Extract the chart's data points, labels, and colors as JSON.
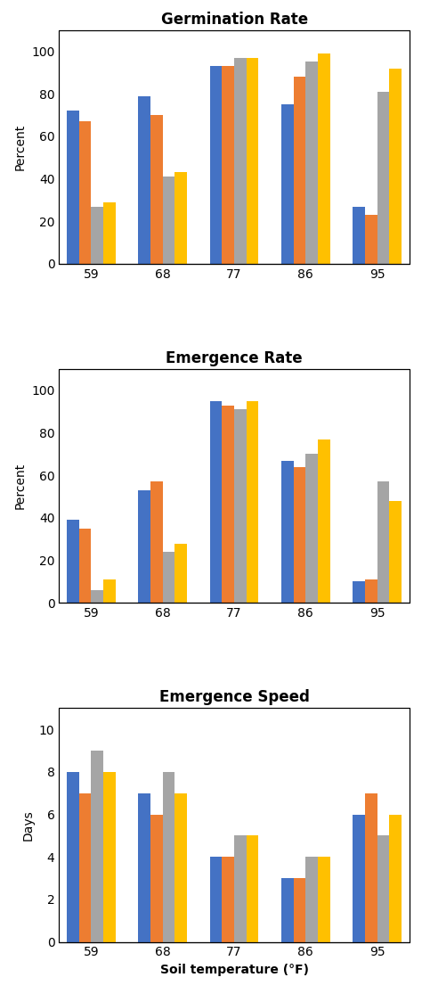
{
  "temperatures": [
    "59",
    "68",
    "77",
    "86",
    "95"
  ],
  "bar_colors": [
    "#4472C4",
    "#ED7D31",
    "#A5A5A5",
    "#FFC000"
  ],
  "germination_rate": {
    "title": "Germination Rate",
    "ylabel": "Percent",
    "ylim": [
      0,
      110
    ],
    "yticks": [
      0,
      20,
      40,
      60,
      80,
      100
    ],
    "data": [
      [
        72,
        67,
        27,
        29
      ],
      [
        79,
        70,
        41,
        43
      ],
      [
        93,
        93,
        97,
        97
      ],
      [
        75,
        88,
        95,
        99
      ],
      [
        27,
        23,
        81,
        92
      ]
    ]
  },
  "emergence_rate": {
    "title": "Emergence Rate",
    "ylabel": "Percent",
    "ylim": [
      0,
      110
    ],
    "yticks": [
      0,
      20,
      40,
      60,
      80,
      100
    ],
    "data": [
      [
        39,
        35,
        6,
        11
      ],
      [
        53,
        57,
        24,
        28
      ],
      [
        95,
        93,
        91,
        95
      ],
      [
        67,
        64,
        70,
        77
      ],
      [
        10,
        11,
        57,
        48
      ]
    ]
  },
  "emergence_speed": {
    "title": "Emergence Speed",
    "ylabel": "Days",
    "ylim": [
      0,
      11
    ],
    "yticks": [
      0,
      2,
      4,
      6,
      8,
      10
    ],
    "data": [
      [
        8,
        7,
        9,
        8
      ],
      [
        7,
        6,
        8,
        7
      ],
      [
        4,
        4,
        5,
        5
      ],
      [
        3,
        3,
        4,
        4
      ],
      [
        6,
        7,
        5,
        6
      ]
    ]
  },
  "xlabel": "Soil temperature (°F)",
  "background_color": "#FFFFFF",
  "title_fontsize": 12,
  "label_fontsize": 10,
  "tick_fontsize": 10
}
